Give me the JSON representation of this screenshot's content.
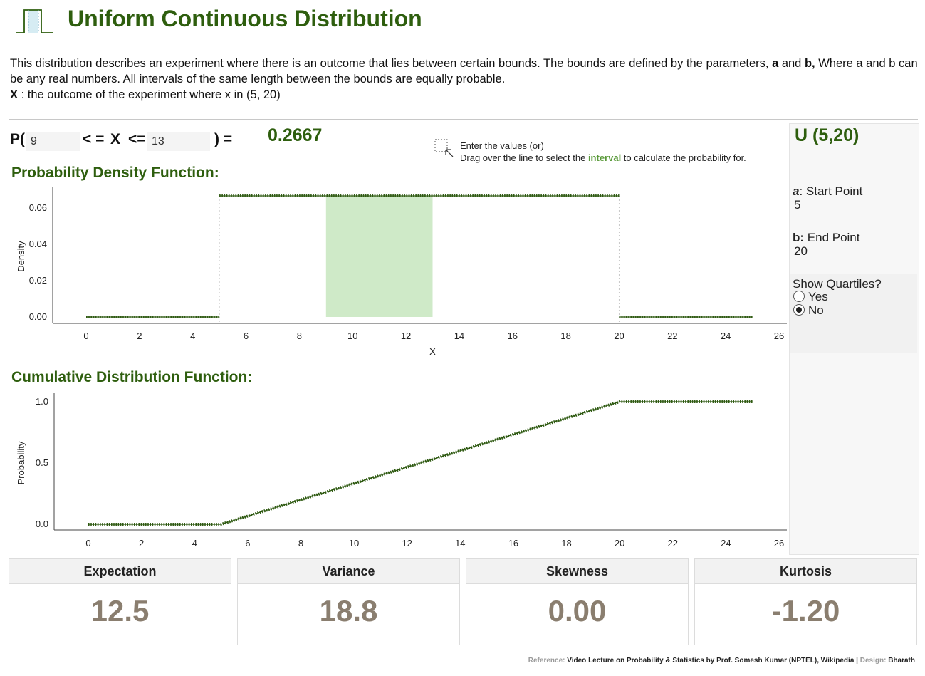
{
  "header": {
    "title": "Uniform Continuous Distribution",
    "logo_icon": "uniform-distribution-logo-icon"
  },
  "description": {
    "line1_pre": "This distribution describes an experiment where there is an outcome that lies between certain bounds. The bounds are defined by the parameters, ",
    "a": "a",
    "mid": " and ",
    "b": "b,",
    "line1_post": " Where a and b can be any real numbers. All intervals of the same length between the bounds are equally probable.",
    "x_label": "X",
    "x_text": " : the outcome of the experiment where x in (5, 20)"
  },
  "probability": {
    "p_open": "P(",
    "lower": "9",
    "le1": "< =",
    "x": "X",
    "le2": "<=",
    "upper": "13",
    "close_eq": ") =",
    "result": "0.2667"
  },
  "hint": {
    "icon": "drag-select-icon",
    "line1": "Enter the values (or)",
    "line2_pre": "Drag over the line to select the ",
    "interval_word": "interval",
    "line2_post": " to calculate the probability for."
  },
  "pdf_title": "Probability Density Function:",
  "cdf_title": "Cumulative Distribution Function:",
  "panel": {
    "title": "U (5,20)",
    "a_label_italic": "a",
    "a_label_rest": ": Start Point",
    "a_value": "5",
    "b_label_bold": "b:",
    "b_label_rest": " End Point",
    "b_value": "20",
    "quartiles_label": "Show Quartiles?",
    "options": [
      "Yes",
      "No"
    ],
    "selected": "No"
  },
  "stats": [
    {
      "label": "Expectation",
      "value": "12.5"
    },
    {
      "label": "Variance",
      "value": "18.8"
    },
    {
      "label": "Skewness",
      "value": "0.00"
    },
    {
      "label": "Kurtosis",
      "value": "-1.20"
    }
  ],
  "footer": {
    "ref_label": "Reference:",
    "ref_text": " Video Lecture on Probability & Statistics by Prof. Somesh Kumar (NPTEL), Wikipedia ",
    "sep": "|",
    "design_label": " Design:",
    "design_text": " Bharath"
  },
  "colors": {
    "accent": "#2e5e0e",
    "line": "#2f5a12",
    "highlight": "#cfeac8",
    "stat_value": "#8a7e6f"
  },
  "chart_data": [
    {
      "type": "line",
      "title": "Probability Density Function:",
      "xlabel": "X",
      "ylabel": "Density",
      "xlim": [
        0,
        26
      ],
      "ylim": [
        0,
        0.0667
      ],
      "x_ticks": [
        0,
        2,
        4,
        6,
        8,
        10,
        12,
        14,
        16,
        18,
        20,
        22,
        24,
        26
      ],
      "y_ticks": [
        0.0,
        0.02,
        0.04,
        0.06
      ],
      "y_tick_labels": [
        "0.00",
        "0.02",
        "0.04",
        "0.06"
      ],
      "series": [
        {
          "x": [
            0,
            5
          ],
          "y": [
            0,
            0
          ]
        },
        {
          "x": [
            5,
            20
          ],
          "y": [
            0.0667,
            0.0667
          ]
        },
        {
          "x": [
            20,
            25
          ],
          "y": [
            0,
            0
          ]
        }
      ],
      "shaded_interval": [
        9,
        13
      ],
      "reference_lines_x": [
        5,
        20
      ]
    },
    {
      "type": "line",
      "title": "Cumulative Distribution Function:",
      "xlabel": "",
      "ylabel": "Probability",
      "xlim": [
        0,
        26
      ],
      "ylim": [
        0,
        1
      ],
      "x_ticks": [
        0,
        2,
        4,
        6,
        8,
        10,
        12,
        14,
        16,
        18,
        20,
        22,
        24,
        26
      ],
      "y_ticks": [
        0.0,
        0.5,
        1.0
      ],
      "y_tick_labels": [
        "0.0",
        "0.5",
        "1.0"
      ],
      "series": [
        {
          "x": [
            0,
            5,
            20,
            25
          ],
          "y": [
            0,
            0,
            1,
            1
          ]
        }
      ]
    }
  ]
}
